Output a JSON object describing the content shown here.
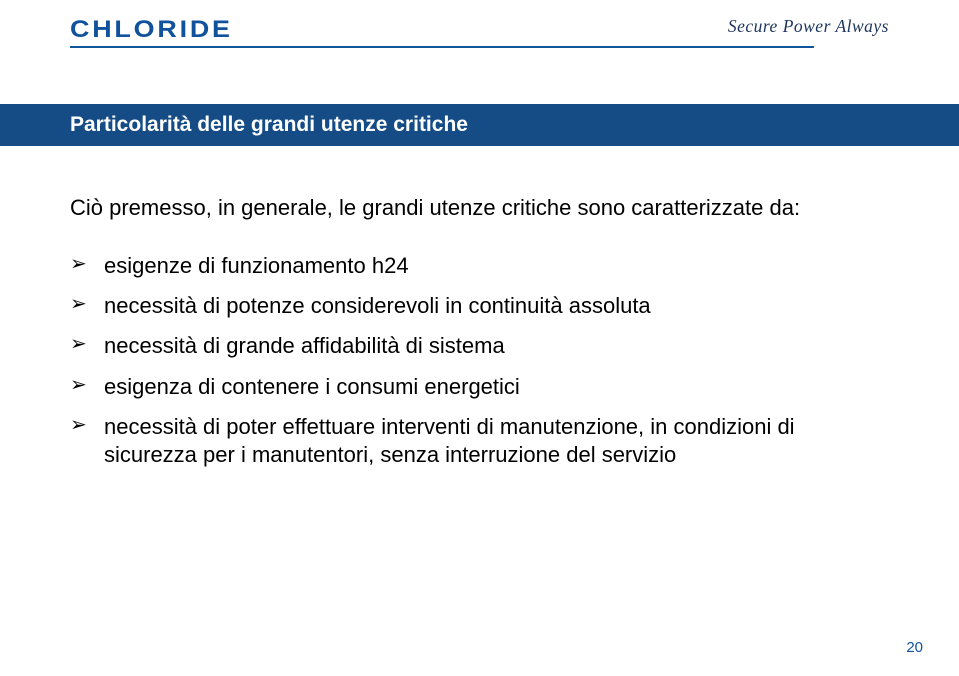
{
  "brand": "CHLORIDE",
  "tagline": "Secure Power Always",
  "title": "Particolarità delle grandi utenze critiche",
  "lead": "Ciò premesso, in generale, le grandi utenze critiche sono caratterizzate da:",
  "bullets": [
    "esigenze di funzionamento h24",
    "necessità di potenze considerevoli in continuità assoluta",
    "necessità di grande affidabilità di sistema",
    "esigenza di contenere i consumi energetici",
    "necessità di poter effettuare interventi di manutenzione, in condizioni di sicurezza per i manutentori, senza interruzione del servizio"
  ],
  "pageNumber": "20",
  "colors": {
    "brandBlue": "#10529c",
    "darkNavy": "#1c355b",
    "barBlue": "#154c85",
    "underlineBlue": "#0f5599",
    "white": "#ffffff",
    "black": "#000000"
  }
}
